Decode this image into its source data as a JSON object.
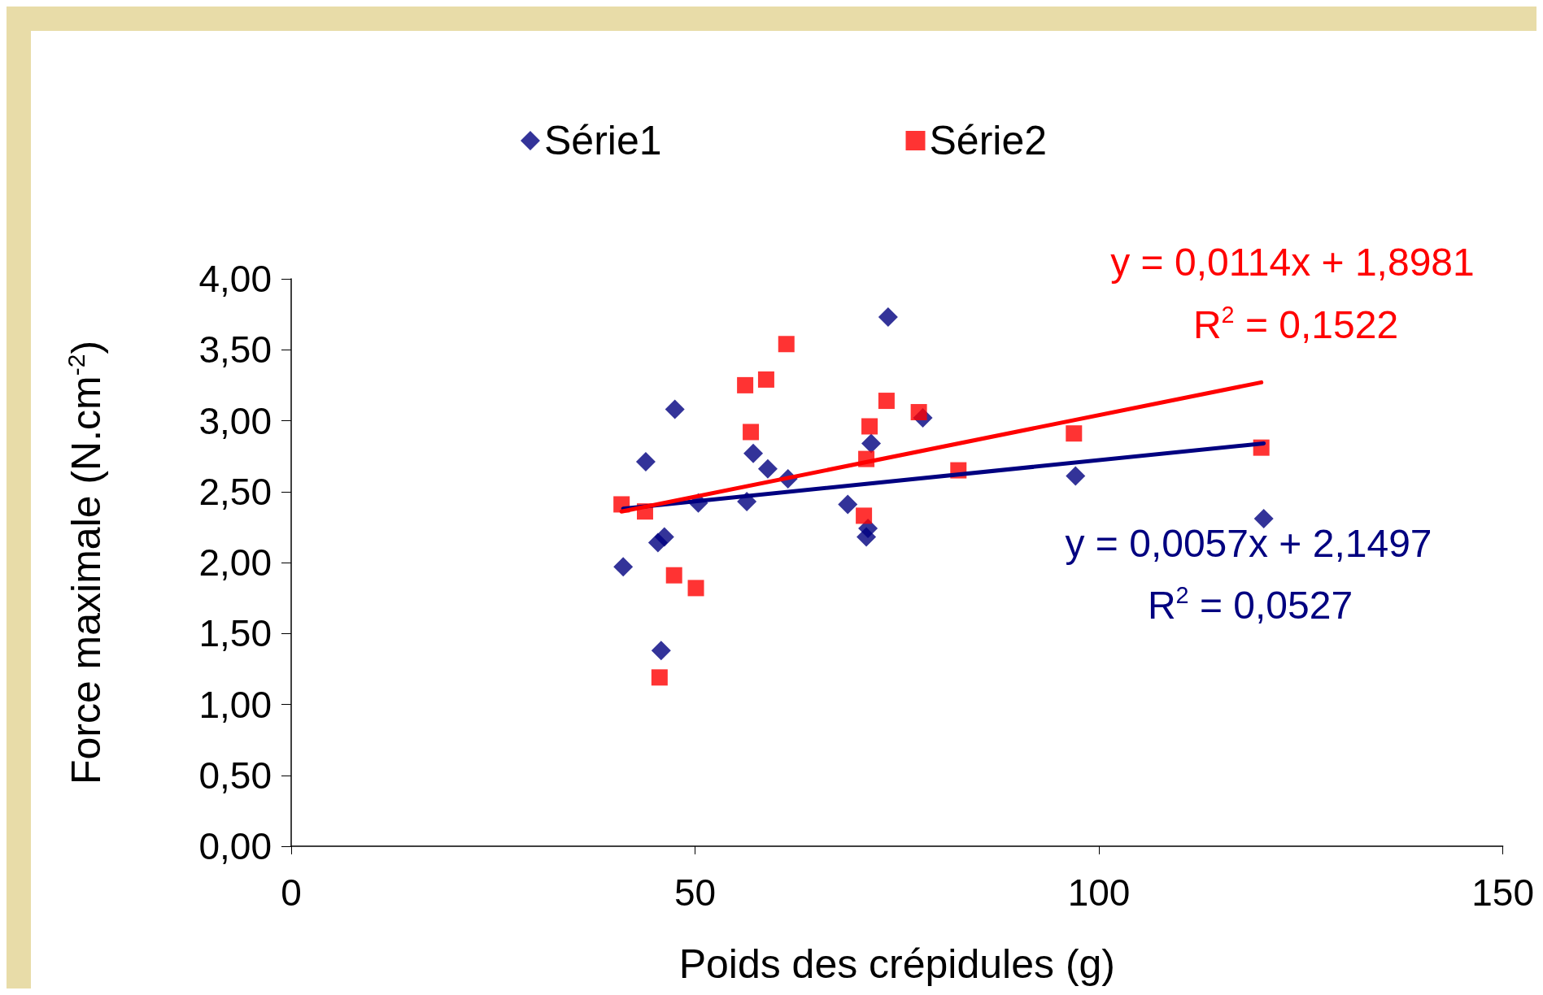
{
  "chart_data": {
    "type": "scatter",
    "xlabel": "Poids des crépidules (g)",
    "ylabel": "Force maximale (N.cm$^{-2}$)",
    "xlim": [
      0,
      150
    ],
    "xticks": [
      0,
      50,
      100,
      150
    ],
    "ylim": [
      0,
      4
    ],
    "yticks": [
      {
        "value": 0,
        "label": "0,00"
      },
      {
        "value": 0.5,
        "label": "0,50"
      },
      {
        "value": 1,
        "label": "1,00"
      },
      {
        "value": 1.5,
        "label": "1,50"
      },
      {
        "value": 2,
        "label": "2,00"
      },
      {
        "value": 2.5,
        "label": "2,50"
      },
      {
        "value": 3,
        "label": "3,00"
      },
      {
        "value": 3.5,
        "label": "3,50"
      },
      {
        "value": 4,
        "label": "4,00"
      }
    ],
    "grid": false,
    "legend": "top",
    "series": [
      {
        "name": "Série1",
        "color": "#000080",
        "marker": "diamond",
        "x": [
          41.1,
          43.9,
          47.5,
          45.4,
          46.2,
          45.8,
          50.4,
          56.4,
          57.2,
          59.0,
          61.5,
          68.9,
          71.2,
          71.4,
          71.8,
          73.9,
          78.2,
          97.1,
          120.4
        ],
        "values": [
          1.97,
          2.71,
          3.08,
          2.14,
          2.18,
          1.38,
          2.42,
          2.43,
          2.77,
          2.66,
          2.59,
          2.41,
          2.18,
          2.24,
          2.84,
          3.73,
          3.02,
          2.61,
          2.31
        ]
      },
      {
        "name": "Série2",
        "color": "#ff0000",
        "marker": "square",
        "x": [
          40.9,
          43.8,
          45.6,
          47.4,
          50.1,
          56.2,
          56.9,
          58.8,
          61.3,
          70.9,
          71.2,
          71.6,
          73.7,
          77.7,
          82.6,
          96.9,
          120.1
        ],
        "values": [
          2.41,
          2.36,
          1.19,
          1.91,
          1.82,
          3.25,
          2.92,
          3.29,
          3.54,
          2.33,
          2.73,
          2.96,
          3.14,
          3.06,
          2.65,
          2.91,
          2.81
        ]
      },
      {
        "type": "line",
        "color": "#000080",
        "marker": "none",
        "x": [
          41.1,
          120.4
        ],
        "values": [
          2.38,
          2.84
        ]
      },
      {
        "type": "line",
        "color": "#ff0000",
        "marker": "none",
        "x": [
          40.9,
          120.1
        ],
        "values": [
          2.36,
          3.27
        ]
      }
    ],
    "annotations": [
      "y = 0,0114x + 1,8981",
      "R$^{2}$ = 0,1522",
      "y = 0,0057x + 2,1497",
      "R$^{2}$ = 0,0527"
    ]
  }
}
